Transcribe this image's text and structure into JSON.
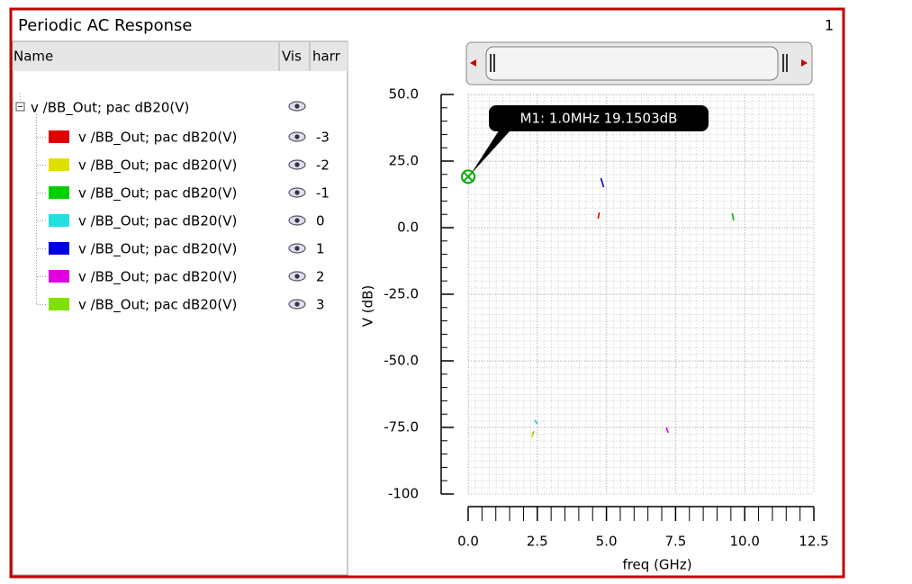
{
  "window": {
    "title": "Periodic AC Response",
    "index": "1"
  },
  "tree": {
    "headers": [
      "Name",
      "Vis",
      "harr"
    ],
    "parent": "v /BB_Out; pac dB20(V)",
    "items": [
      {
        "label": "v /BB_Out; pac dB20(V)",
        "color": "#e00000",
        "harmonic": "-3"
      },
      {
        "label": "v /BB_Out; pac dB20(V)",
        "color": "#e0e000",
        "harmonic": "-2"
      },
      {
        "label": "v /BB_Out; pac dB20(V)",
        "color": "#00d000",
        "harmonic": "-1"
      },
      {
        "label": "v /BB_Out; pac dB20(V)",
        "color": "#20e0e0",
        "harmonic": "0"
      },
      {
        "label": "v /BB_Out; pac dB20(V)",
        "color": "#0000e0",
        "harmonic": "1"
      },
      {
        "label": "v /BB_Out; pac dB20(V)",
        "color": "#e000e0",
        "harmonic": "2"
      },
      {
        "label": "v /BB_Out; pac dB20(V)",
        "color": "#80e000",
        "harmonic": "3"
      }
    ]
  },
  "chart_data": {
    "type": "line",
    "xlabel": "freq (GHz)",
    "ylabel": "V (dB)",
    "xlim": [
      0,
      12.5
    ],
    "ylim": [
      -100,
      50
    ],
    "xticks": [
      {
        "value": 0,
        "label": "0.0"
      },
      2.5,
      {
        "value": 5,
        "label": "5.0"
      },
      7.5,
      {
        "value": 10,
        "label": "10.0"
      },
      12.5
    ],
    "yticks": [
      {
        "value": 50,
        "label": "50.0"
      },
      {
        "value": 25,
        "label": "25.0"
      },
      {
        "value": 0,
        "label": "0.0"
      },
      {
        "value": -25,
        "label": "-25.0"
      },
      {
        "value": -50,
        "label": "-50.0"
      },
      {
        "value": -75,
        "label": "-75.0"
      },
      -100
    ],
    "grid": true,
    "marker": {
      "label": "M1: 1.0MHz 19.1503dB",
      "x": 0.001,
      "y": 19.1503
    },
    "series": [
      {
        "name": "-3",
        "color": "#e00000",
        "x": [
          4.7,
          4.74
        ],
        "values": [
          3.4,
          5.7
        ]
      },
      {
        "name": "-2",
        "color": "#d8d800",
        "x": [
          2.3,
          2.35
        ],
        "values": [
          -78.7,
          -77.2
        ]
      },
      {
        "name": "-1",
        "color": "#00c000",
        "x": [
          9.55,
          9.6
        ],
        "values": [
          5.4,
          2.7
        ]
      },
      {
        "name": "0",
        "color": "#20c8d8",
        "x": [
          2.41,
          2.5
        ],
        "values": [
          -72.3,
          -73.6
        ]
      },
      {
        "name": "1",
        "color": "#0000e0",
        "x": [
          4.8,
          4.9
        ],
        "values": [
          18.6,
          15.2
        ]
      },
      {
        "name": "2",
        "color": "#e000e0",
        "x": [
          7.17,
          7.23
        ],
        "values": [
          -75,
          -77
        ]
      },
      {
        "name": "3",
        "color": "#80d000",
        "x": [
          2.33,
          2.38
        ],
        "values": [
          -77.6,
          -76.4
        ]
      }
    ]
  }
}
